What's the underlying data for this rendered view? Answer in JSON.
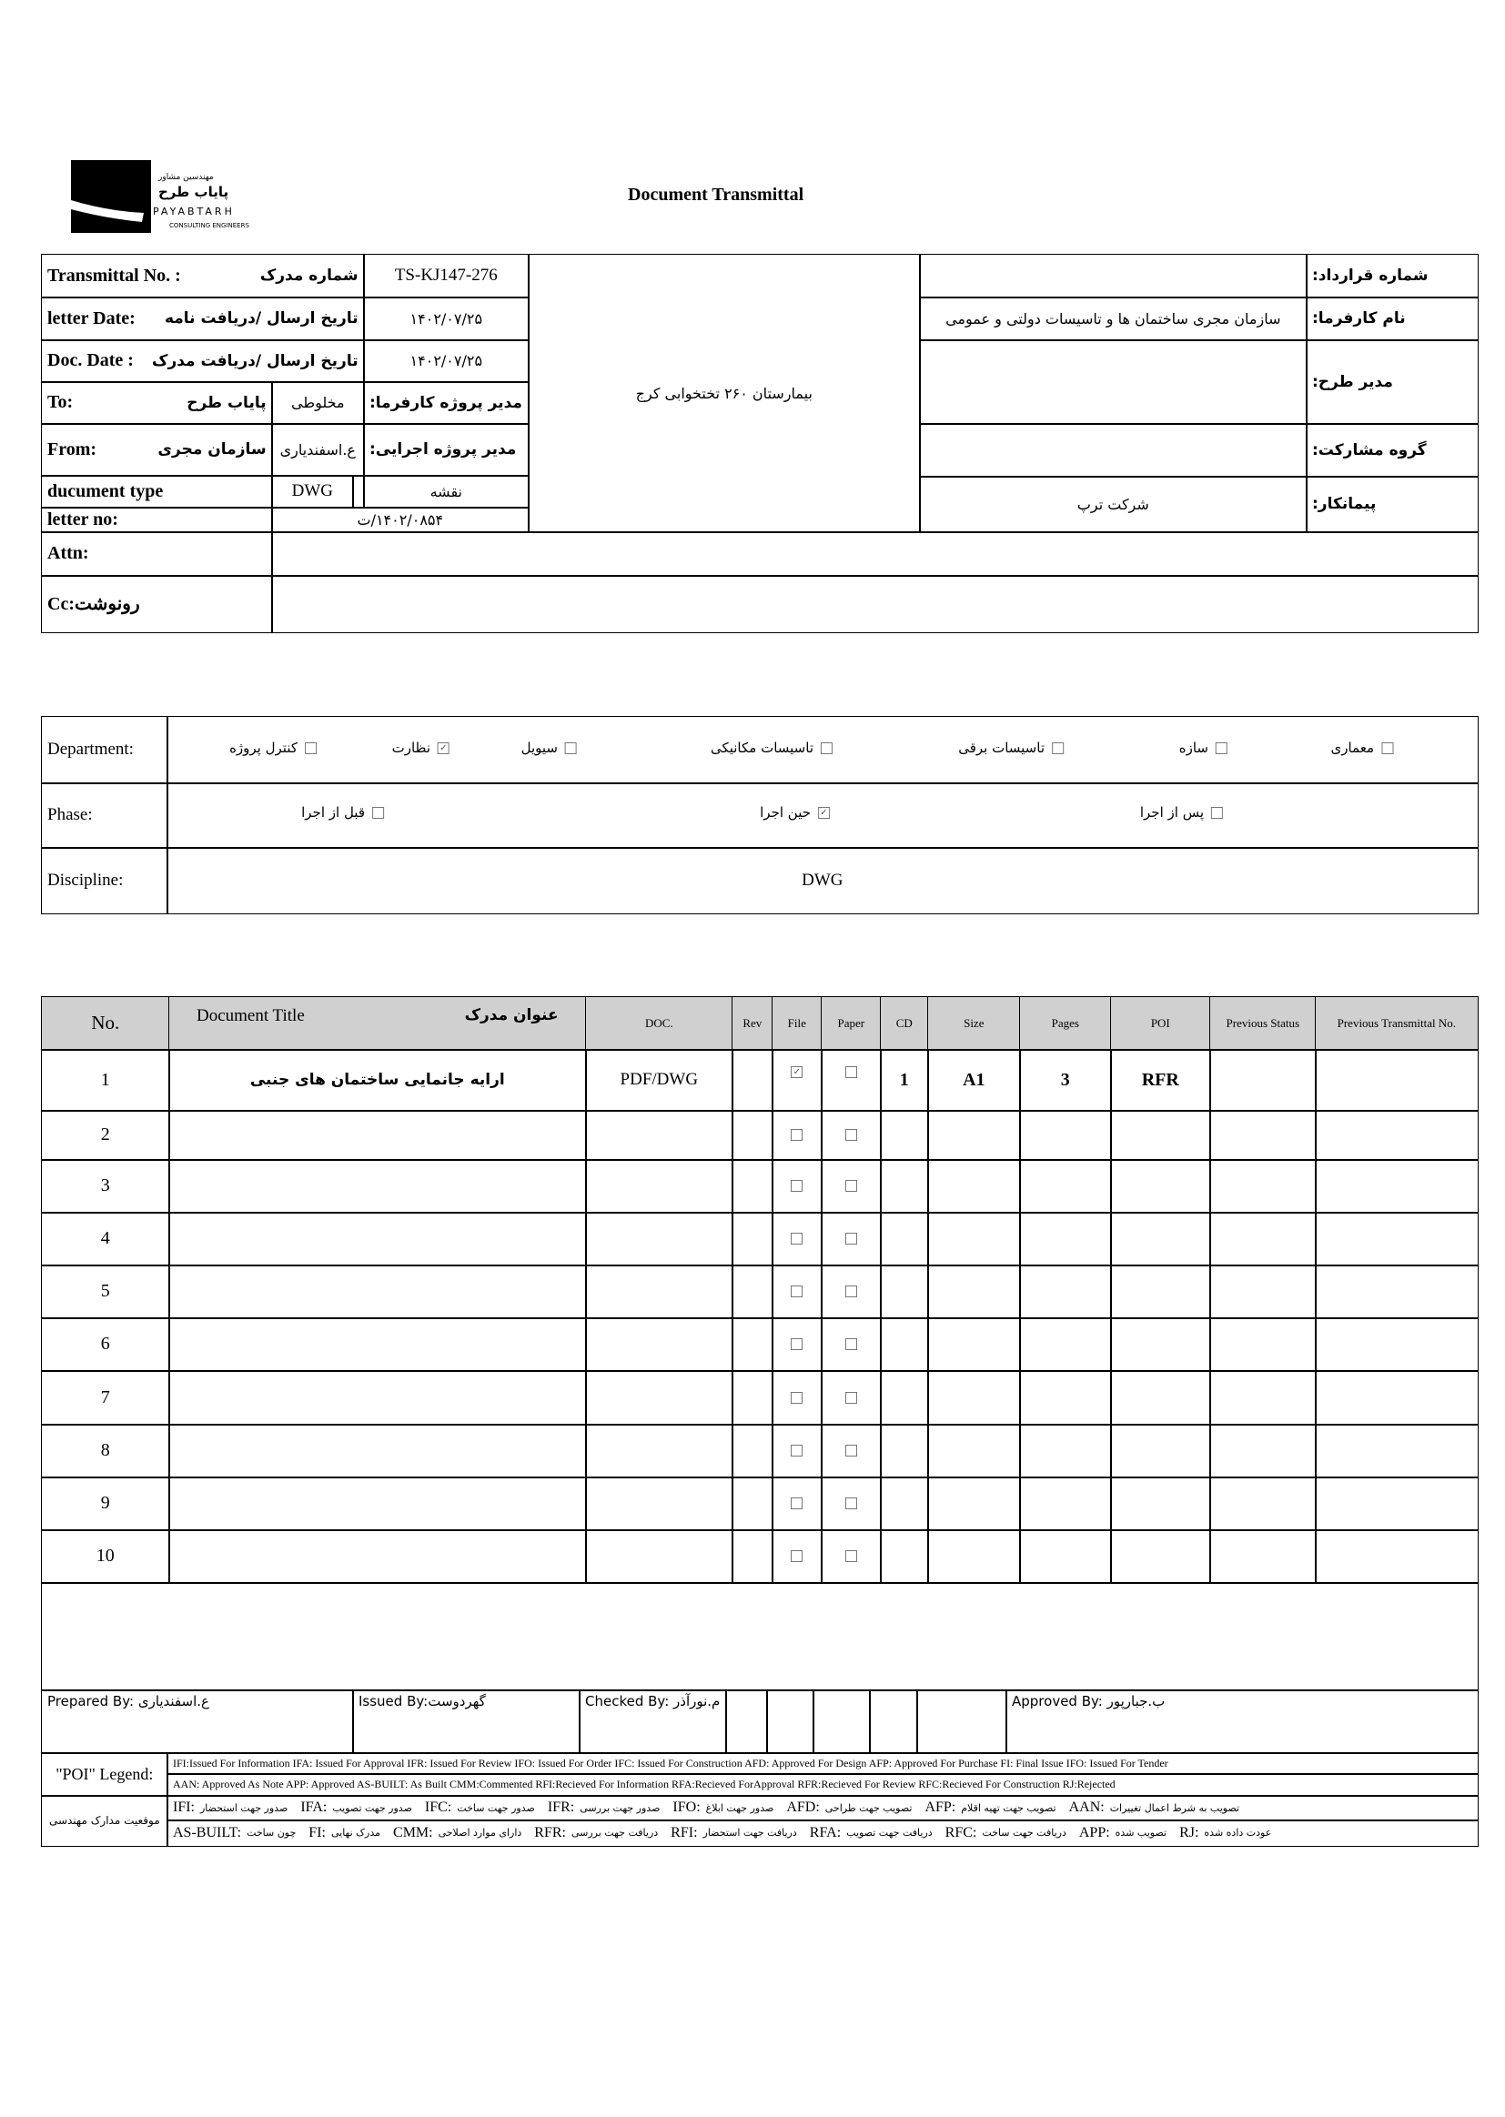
{
  "logo": {
    "fa_small": "مهندسین مشاور",
    "fa_name": "پایاب طرح",
    "en_name": "PAYABTARH",
    "en_sub": "CONSULTING ENGINEERS"
  },
  "title": "Document Transmittal",
  "info": {
    "transmittal_label_en": "Transmittal No. :",
    "transmittal_label_fa": "شماره مدرک",
    "transmittal_no": "TS-KJ147-276",
    "letter_date_label_en": "letter Date:",
    "letter_date_label_fa": "تاریخ ارسال /دریافت نامه",
    "letter_date": "۱۴۰۲/۰۷/۲۵",
    "doc_date_label_en": "Doc. Date :",
    "doc_date_label_fa": "تاریخ ارسال /دریافت مدرک",
    "doc_date": "۱۴۰۲/۰۷/۲۵",
    "to_label": "To:",
    "to_value": "پایاب طرح",
    "client_pm_value": "مخلوطی",
    "client_pm_label": "مدیر پروژه کارفرما:",
    "from_label": "From:",
    "from_value": "سازمان مجری",
    "exec_pm_value": "ع.اسفندیاری",
    "exec_pm_label": "مدیر پروژه اجرایی:",
    "doc_type_label": "ducument type",
    "doc_type_value": "DWG",
    "doc_type_fa": "نقشه",
    "letter_no_label": "letter no:",
    "letter_no": "ت/۱۴۰۲/۰۸۵۴",
    "project_name": "بیمارستان ۲۶۰ تختخوابی کرج",
    "contract_no_label": "شماره قرارداد:",
    "contract_no": "",
    "employer_label": "نام کارفرما:",
    "employer": "سازمان مجری ساختمان ها و تاسیسات دولتی و عمومی",
    "project_manager_label": "مدیر طرح:",
    "project_manager": "",
    "partnership_label": "گروه مشارکت:",
    "partnership": "",
    "contractor_label": "پیمانکار:",
    "contractor": "شرکت ترپ",
    "attn_label": "Attn:",
    "attn": "",
    "cc_label": "Cc:رونوشت",
    "cc": ""
  },
  "classification": {
    "department_label": "Department:",
    "departments": [
      {
        "label": "کنترل پروژه",
        "checked": false
      },
      {
        "label": "نظارت",
        "checked": true
      },
      {
        "label": "سیویل",
        "checked": false
      },
      {
        "label": "تاسیسات مکانیکی",
        "checked": false
      },
      {
        "label": "تاسیسات برقی",
        "checked": false
      },
      {
        "label": "سازه",
        "checked": false
      },
      {
        "label": "معماری",
        "checked": false
      }
    ],
    "phase_label": "Phase:",
    "phases": [
      {
        "label": "قبل از اجرا",
        "checked": false
      },
      {
        "label": "حین اجرا",
        "checked": true
      },
      {
        "label": "پس از اجرا",
        "checked": false
      }
    ],
    "discipline_label": "Discipline:",
    "discipline": "DWG"
  },
  "documents": {
    "headers": {
      "no": "No.",
      "title_en": "Document Title",
      "title_fa": "عنوان مدرک",
      "doc": "DOC.",
      "rev": "Rev",
      "file": "File",
      "paper": "Paper",
      "cd": "CD",
      "size": "Size",
      "pages": "Pages",
      "poi": "POI",
      "prev_status": "Previous Status",
      "prev_transmittal": "Previous Transmittal No."
    },
    "rows": [
      {
        "no": "1",
        "title": "ارایه جانمایی ساختمان های جنبی",
        "doc": "PDF/DWG",
        "rev": "",
        "file": true,
        "paper": false,
        "cd": "1",
        "size": "A1",
        "pages": "3",
        "poi": "RFR",
        "prev_status": "",
        "prev_transmittal": ""
      },
      {
        "no": "2",
        "file": false,
        "paper": false
      },
      {
        "no": "3",
        "file": false,
        "paper": false
      },
      {
        "no": "4",
        "file": false,
        "paper": false
      },
      {
        "no": "5",
        "file": false,
        "paper": false
      },
      {
        "no": "6",
        "file": false,
        "paper": false
      },
      {
        "no": "7",
        "file": false,
        "paper": false
      },
      {
        "no": "8",
        "file": false,
        "paper": false
      },
      {
        "no": "9",
        "file": false,
        "paper": false
      },
      {
        "no": "10",
        "file": false,
        "paper": false
      }
    ]
  },
  "signatures": {
    "prepared": "Prepared By: ع.اسفندیاری",
    "issued": "Issued By:گهردوست",
    "checked": "Checked By: م.نورآذر",
    "approved": "Approved By: ب.جبارپور"
  },
  "legend": {
    "poi_label": "\"POI\" Legend:",
    "en_row1": "IFI:Issued For Information  IFA: Issued For Approval  IFR: Issued For Review   IFO: Issued For Order  IFC: Issued For Construction AFD: Approved For Design AFP: Approved For Purchase  FI: Final Issue  IFO: Issued For Tender",
    "en_row2": "AAN: Approved As Note  APP: Approved  AS-BUILT: As Built CMM:Commented  RFI:Recieved For Information  RFA:Recieved ForApproval  RFR:Recieved For Review  RFC:Recieved For Construction  RJ:Rejected",
    "fa_label": "موقعیت مدارک مهندسی",
    "fa_row1": [
      {
        "k": "IFI:",
        "v": "صدور جهت استحضار"
      },
      {
        "k": "IFA:",
        "v": "صدور جهت تصویب"
      },
      {
        "k": "IFC:",
        "v": "صدور جهت ساخت"
      },
      {
        "k": "IFR:",
        "v": "صدور جهت بررسی"
      },
      {
        "k": "IFO:",
        "v": "صدور جهت ابلاغ"
      },
      {
        "k": "AFD:",
        "v": "تصویب جهت طراحی"
      },
      {
        "k": "AFP:",
        "v": "تصویب جهت تهیه اقلام"
      },
      {
        "k": "AAN:",
        "v": "تصویب به شرط اعمال تغییرات"
      }
    ],
    "fa_row2": [
      {
        "k": "AS-BUILT:",
        "v": "چون ساخت"
      },
      {
        "k": "FI:",
        "v": "مدرک نهایی"
      },
      {
        "k": "CMM:",
        "v": "دارای موارد اصلاحی"
      },
      {
        "k": "RFR:",
        "v": "دریافت جهت بررسی"
      },
      {
        "k": "RFI:",
        "v": "دریافت جهت استحضار"
      },
      {
        "k": "RFA:",
        "v": "دریافت جهت تصویب"
      },
      {
        "k": "RFC:",
        "v": "دریافت جهت ساخت"
      },
      {
        "k": "APP:",
        "v": "تصویب شده"
      },
      {
        "k": "RJ:",
        "v": "عودت داده شده"
      }
    ]
  }
}
